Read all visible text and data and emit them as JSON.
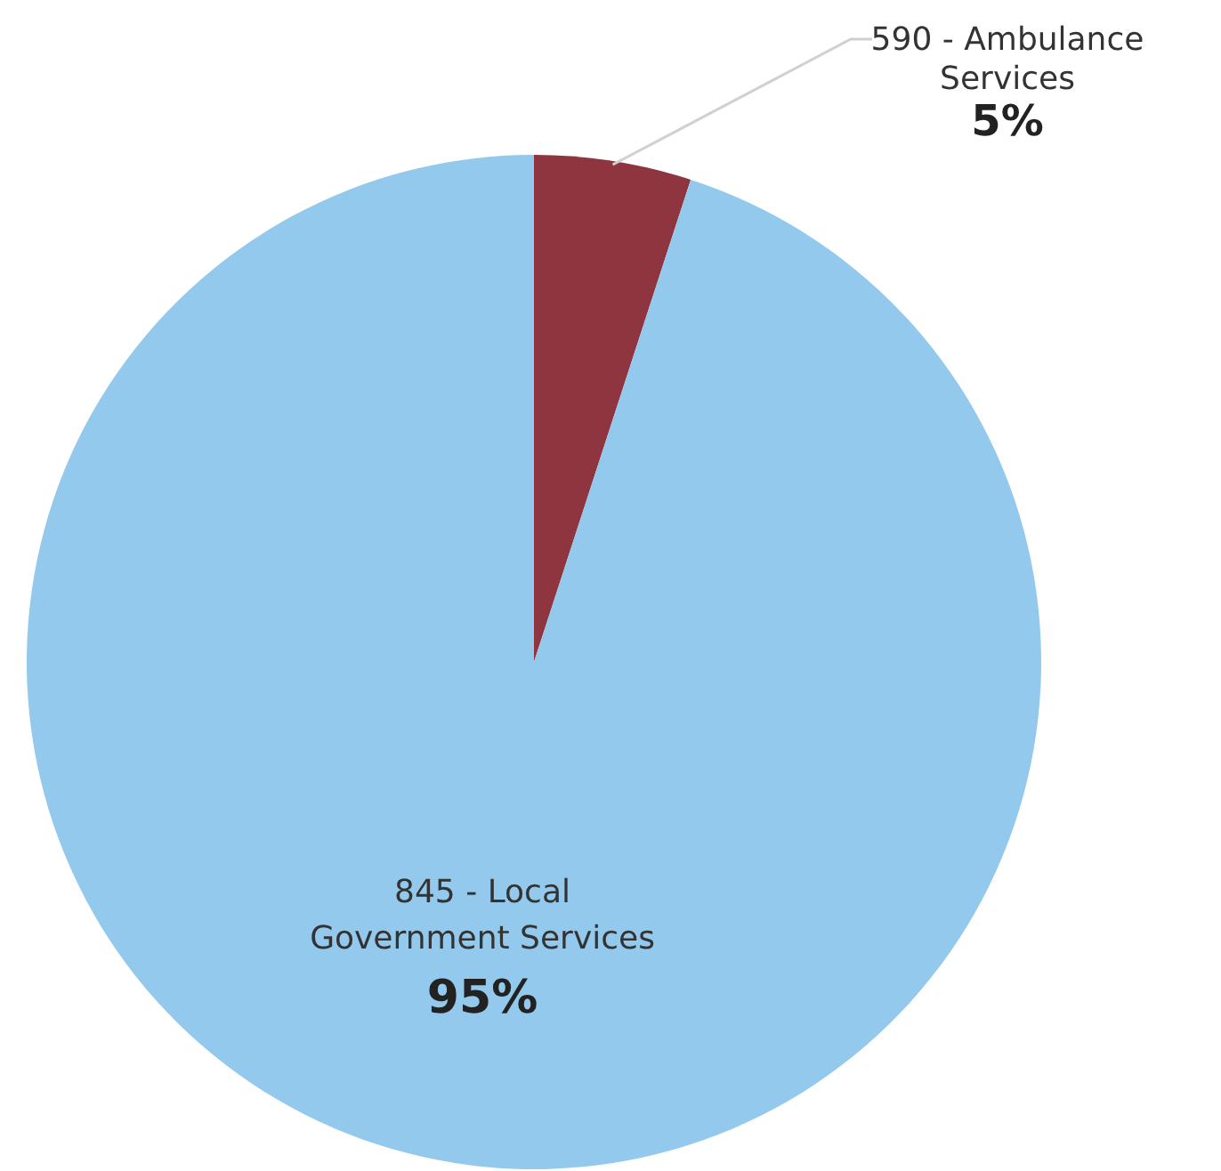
{
  "chart_data": {
    "type": "pie",
    "categories": [
      "590 - Ambulance Services",
      "845 - Local Government Services"
    ],
    "values": [
      5,
      95
    ],
    "colors": [
      "#8e3540",
      "#93c9ec"
    ],
    "value_labels": [
      "5%",
      "95%"
    ]
  }
}
